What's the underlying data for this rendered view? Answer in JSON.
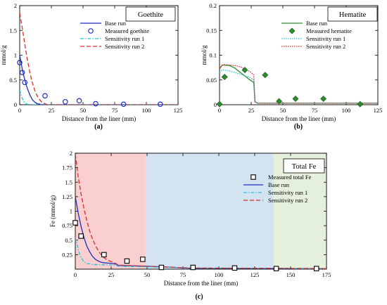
{
  "chart_data": [
    {
      "id": "a",
      "type": "line",
      "panel_label": "(a)",
      "title": "Goethite",
      "xlabel": "Distance from the liner (mm)",
      "ylabel": "mmol/g",
      "xlim": [
        0,
        125
      ],
      "ylim": [
        0,
        2
      ],
      "xticks": [
        0,
        25,
        50,
        75,
        100,
        125
      ],
      "yticks": [
        0,
        0.5,
        1,
        1.5,
        2
      ],
      "legend_position": "top-right",
      "series": [
        {
          "name": "Base run",
          "kind": "line",
          "style": "solid",
          "color": "#1f2fbf",
          "x": [
            0,
            2,
            4,
            6,
            8,
            10,
            12,
            14,
            16,
            20,
            125
          ],
          "y": [
            1.0,
            0.72,
            0.5,
            0.33,
            0.2,
            0.1,
            0.05,
            0.02,
            0.01,
            0,
            0
          ]
        },
        {
          "name": "Measured goethite",
          "kind": "marker",
          "marker": "circle",
          "color": "#1f2fbf",
          "x": [
            0,
            2,
            4,
            20,
            36,
            47,
            60,
            82,
            111
          ],
          "y": [
            0.85,
            0.65,
            0.45,
            0.18,
            0.06,
            0.08,
            0.02,
            0.01,
            0.01
          ]
        },
        {
          "name": "Sensitivity run 1",
          "kind": "line",
          "style": "dashdot",
          "color": "#29c4d8",
          "x": [
            0,
            1,
            2,
            3,
            4,
            5,
            6,
            8,
            125
          ],
          "y": [
            0.3,
            0.2,
            0.13,
            0.08,
            0.04,
            0.02,
            0.01,
            0,
            0
          ]
        },
        {
          "name": "Sensitivity run 2",
          "kind": "line",
          "style": "dashed",
          "color": "#d62f2f",
          "x": [
            0,
            2,
            4,
            6,
            8,
            10,
            12,
            14,
            16,
            18,
            20,
            22,
            125
          ],
          "y": [
            1.85,
            1.55,
            1.22,
            0.92,
            0.65,
            0.44,
            0.28,
            0.17,
            0.09,
            0.04,
            0.02,
            0,
            0
          ]
        }
      ]
    },
    {
      "id": "b",
      "type": "line",
      "panel_label": "(b)",
      "title": "Hematite",
      "xlabel": "Distance from the liner (mm)",
      "ylabel": "mmol/g",
      "xlim": [
        0,
        125
      ],
      "ylim": [
        0,
        0.2
      ],
      "xticks": [
        0,
        25,
        50,
        75,
        100,
        125
      ],
      "yticks": [
        0,
        0.05,
        0.1,
        0.15,
        0.2
      ],
      "legend_position": "top-right",
      "series": [
        {
          "name": "Base run",
          "kind": "line",
          "style": "solid",
          "color": "#2e8b2e",
          "x": [
            0,
            2,
            4,
            8,
            12,
            16,
            20,
            24,
            27,
            28,
            30,
            125
          ],
          "y": [
            0.072,
            0.08,
            0.08,
            0.079,
            0.074,
            0.066,
            0.058,
            0.05,
            0.045,
            0.006,
            0.003,
            0.003
          ]
        },
        {
          "name": "Measured hematite",
          "kind": "marker",
          "marker": "diamond",
          "color": "#2e8b2e",
          "x": [
            0,
            4,
            20,
            36,
            47,
            60,
            82,
            111
          ],
          "y": [
            0.001,
            0.056,
            0.07,
            0.06,
            0.007,
            0.012,
            0.012,
            0.001
          ]
        },
        {
          "name": "Sensitivity run 1",
          "kind": "line",
          "style": "dotted",
          "color": "#29c4d8",
          "x": [
            0,
            2,
            4,
            8,
            12,
            16,
            20,
            24,
            27,
            28,
            30,
            125
          ],
          "y": [
            0.066,
            0.07,
            0.07,
            0.068,
            0.065,
            0.062,
            0.058,
            0.055,
            0.05,
            0.006,
            0.003,
            0.003
          ]
        },
        {
          "name": "Sensitivity run 2",
          "kind": "line",
          "style": "dotted",
          "color": "#d62f2f",
          "x": [
            0,
            2,
            4,
            8,
            12,
            16,
            20,
            24,
            27,
            28,
            30,
            125
          ],
          "y": [
            0.073,
            0.08,
            0.081,
            0.08,
            0.079,
            0.077,
            0.072,
            0.067,
            0.06,
            0.006,
            0.003,
            0.003
          ]
        }
      ]
    },
    {
      "id": "c",
      "type": "line",
      "panel_label": "(c)",
      "title": "Total Fe",
      "xlabel": "Distance from the liner (mm)",
      "ylabel": "Fe  (mmol/g)",
      "xlim": [
        0,
        175
      ],
      "ylim": [
        0,
        2
      ],
      "xticks": [
        0,
        25,
        50,
        75,
        100,
        125,
        150,
        175
      ],
      "yticks": [
        0.25,
        0.5,
        0.75,
        1,
        1.25,
        1.5,
        1.75,
        2
      ],
      "legend_position": "top-right",
      "background_zones": [
        {
          "x0": 0,
          "x1": 49,
          "color": "#f9cfcf"
        },
        {
          "x0": 49,
          "x1": 138,
          "color": "#d3e3f1"
        },
        {
          "x0": 138,
          "x1": 175,
          "color": "#e4f0dc"
        }
      ],
      "series": [
        {
          "name": "Measured total Fe",
          "kind": "marker",
          "marker": "square",
          "color": "#000000",
          "x": [
            0,
            4,
            20,
            36,
            47,
            60,
            82,
            111,
            140,
            168
          ],
          "y": [
            0.8,
            0.57,
            0.25,
            0.14,
            0.17,
            0.03,
            0.03,
            0.02,
            0.01,
            0.01
          ]
        },
        {
          "name": "Base run",
          "kind": "line",
          "style": "solid",
          "color": "#1f2fbf",
          "x": [
            0,
            2,
            4,
            6,
            8,
            10,
            12,
            14,
            16,
            18,
            20,
            25,
            28,
            30,
            50,
            70,
            80,
            175
          ],
          "y": [
            1.25,
            0.97,
            0.74,
            0.55,
            0.4,
            0.3,
            0.22,
            0.17,
            0.14,
            0.12,
            0.11,
            0.1,
            0.09,
            0.065,
            0.05,
            0.03,
            0.015,
            0.01
          ]
        },
        {
          "name": "Sensitivity run 1",
          "kind": "line",
          "style": "dashdot",
          "color": "#29c4d8",
          "x": [
            0,
            1,
            2,
            3,
            4,
            6,
            8,
            12,
            20,
            28,
            30,
            50,
            80,
            175
          ],
          "y": [
            0.55,
            0.45,
            0.35,
            0.26,
            0.2,
            0.13,
            0.1,
            0.08,
            0.075,
            0.07,
            0.05,
            0.04,
            0.02,
            0.01
          ]
        },
        {
          "name": "Sensitivity run 2",
          "kind": "line",
          "style": "dashed",
          "color": "#d62f2f",
          "x": [
            0,
            2,
            4,
            6,
            8,
            10,
            12,
            14,
            16,
            18,
            20,
            22,
            25,
            28,
            30,
            50,
            80,
            175
          ],
          "y": [
            1.98,
            1.6,
            1.3,
            1.05,
            0.84,
            0.66,
            0.52,
            0.41,
            0.32,
            0.25,
            0.2,
            0.16,
            0.13,
            0.1,
            0.07,
            0.05,
            0.02,
            0.01
          ]
        }
      ]
    }
  ]
}
